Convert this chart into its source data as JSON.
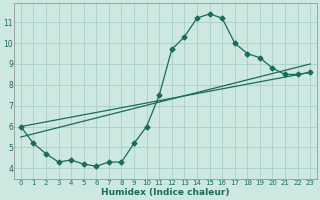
{
  "title": "",
  "xlabel": "Humidex (Indice chaleur)",
  "ylabel": "",
  "background_color": "#cce8e0",
  "grid_color": "#aacfc8",
  "line_color": "#1a6b5a",
  "xlim": [
    -0.5,
    23.5
  ],
  "ylim": [
    3.5,
    11.9
  ],
  "xticks": [
    0,
    1,
    2,
    3,
    4,
    5,
    6,
    7,
    8,
    9,
    10,
    11,
    12,
    13,
    14,
    15,
    16,
    17,
    18,
    19,
    20,
    21,
    22,
    23
  ],
  "yticks": [
    4,
    5,
    6,
    7,
    8,
    9,
    10,
    11
  ],
  "line1_x": [
    0,
    1,
    2,
    3,
    4,
    5,
    6,
    7,
    8,
    9,
    10,
    11,
    12,
    13,
    14,
    15,
    16,
    17,
    18,
    19,
    20,
    21,
    22,
    23
  ],
  "line1_y": [
    6.0,
    5.2,
    4.7,
    4.3,
    4.4,
    4.2,
    4.1,
    4.3,
    4.3,
    5.2,
    6.0,
    7.5,
    9.7,
    10.3,
    11.2,
    11.4,
    11.2,
    10.0,
    9.5,
    9.3,
    8.8,
    8.5,
    8.5,
    8.6
  ],
  "line2_x": [
    0,
    23
  ],
  "line2_y": [
    6.0,
    8.6
  ],
  "line3_x": [
    0,
    23
  ],
  "line3_y": [
    5.5,
    9.0
  ],
  "marker_size": 2.5,
  "linewidth": 0.9
}
